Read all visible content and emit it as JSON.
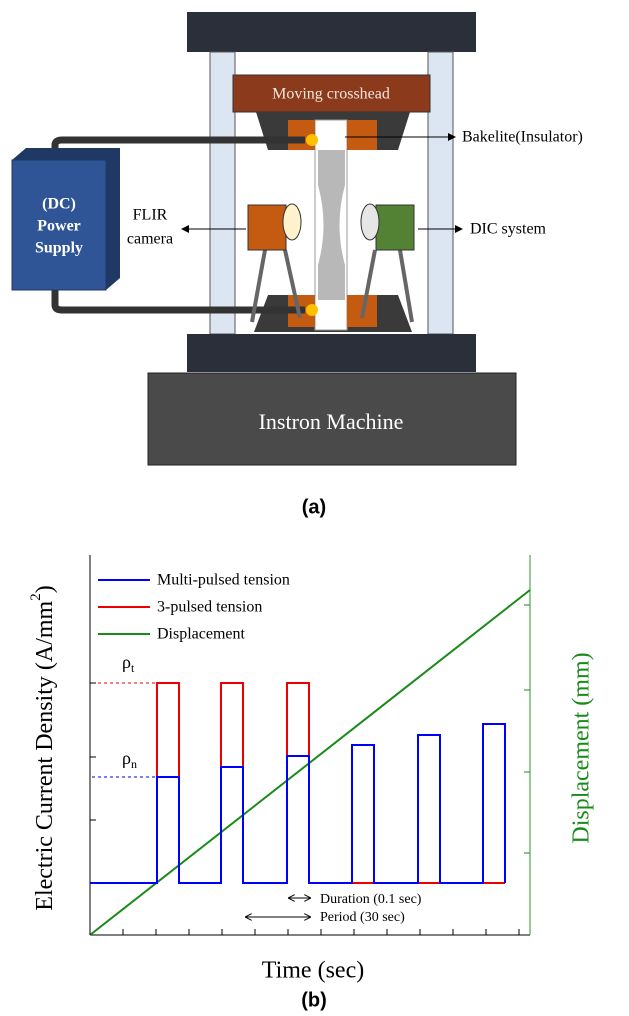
{
  "panel_a": {
    "crosshead": "Moving crosshead",
    "insulator": "Bakelite(Insulator)",
    "power_supply": [
      "(DC)",
      "Power",
      "Supply"
    ],
    "camera": [
      "FLIR",
      "camera"
    ],
    "dic": "DIC system",
    "machine": "Instron Machine",
    "caption": "(a)"
  },
  "panel_b": {
    "y_label": "Electric Current Density (A/mm",
    "y_label_sup": "2",
    "y_label_end": ")",
    "y2_label": "Displacement (mm)",
    "x_label": "Time (sec)",
    "legend": [
      "Multi-pulsed tension",
      "3-pulsed tension",
      "Displacement"
    ],
    "rho": "ρ",
    "rho_t_sub": "t",
    "rho_n_sub": "n",
    "duration": "Duration (0.1 sec)",
    "period": "Period (30 sec)",
    "caption": "(b)"
  }
}
